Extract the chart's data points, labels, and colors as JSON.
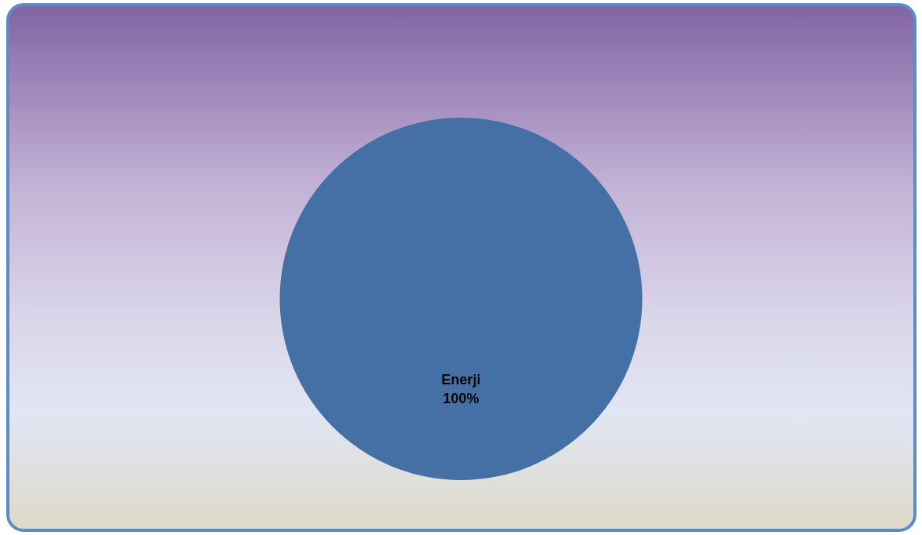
{
  "chart_data": {
    "type": "pie",
    "categories": [
      "Enerji"
    ],
    "values": [
      100
    ],
    "colors": [
      "#4470a5"
    ],
    "value_labels": [
      "100%"
    ]
  }
}
